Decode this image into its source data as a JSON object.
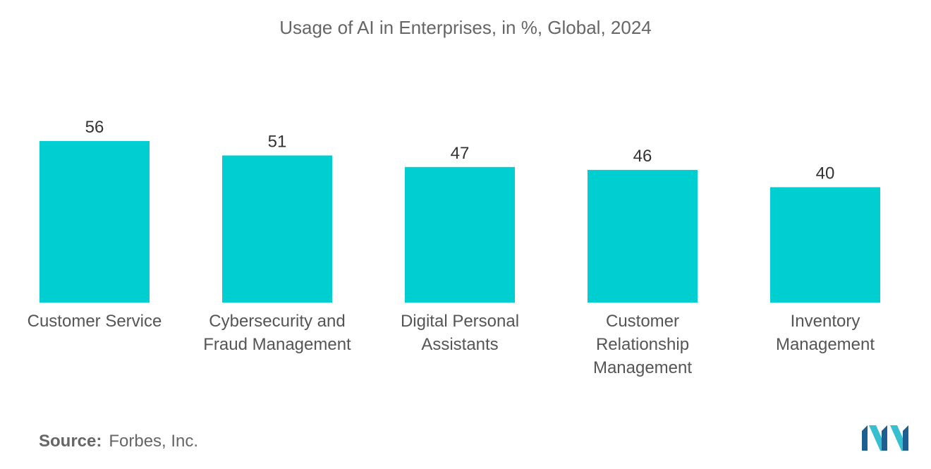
{
  "chart_data": {
    "type": "bar",
    "title": "Usage of AI in Enterprises, in %, Global, 2024",
    "categories": [
      [
        "Customer Service"
      ],
      [
        "Cybersecurity and",
        "Fraud Management"
      ],
      [
        "Digital Personal",
        "Assistants"
      ],
      [
        "Customer",
        "Relationship",
        "Management"
      ],
      [
        "Inventory",
        "Management"
      ]
    ],
    "values": [
      56,
      51,
      47,
      46,
      40
    ],
    "xlabel": "",
    "ylabel": "",
    "ylim": [
      0,
      56
    ],
    "grid": false,
    "bar_color": "#00CED1"
  },
  "source": {
    "label": "Source:",
    "text": "Forbes, Inc."
  },
  "logo": {
    "icon": "mordor-intelligence-logo-icon",
    "colors": [
      "#1d5f91",
      "#35bfd0"
    ]
  }
}
